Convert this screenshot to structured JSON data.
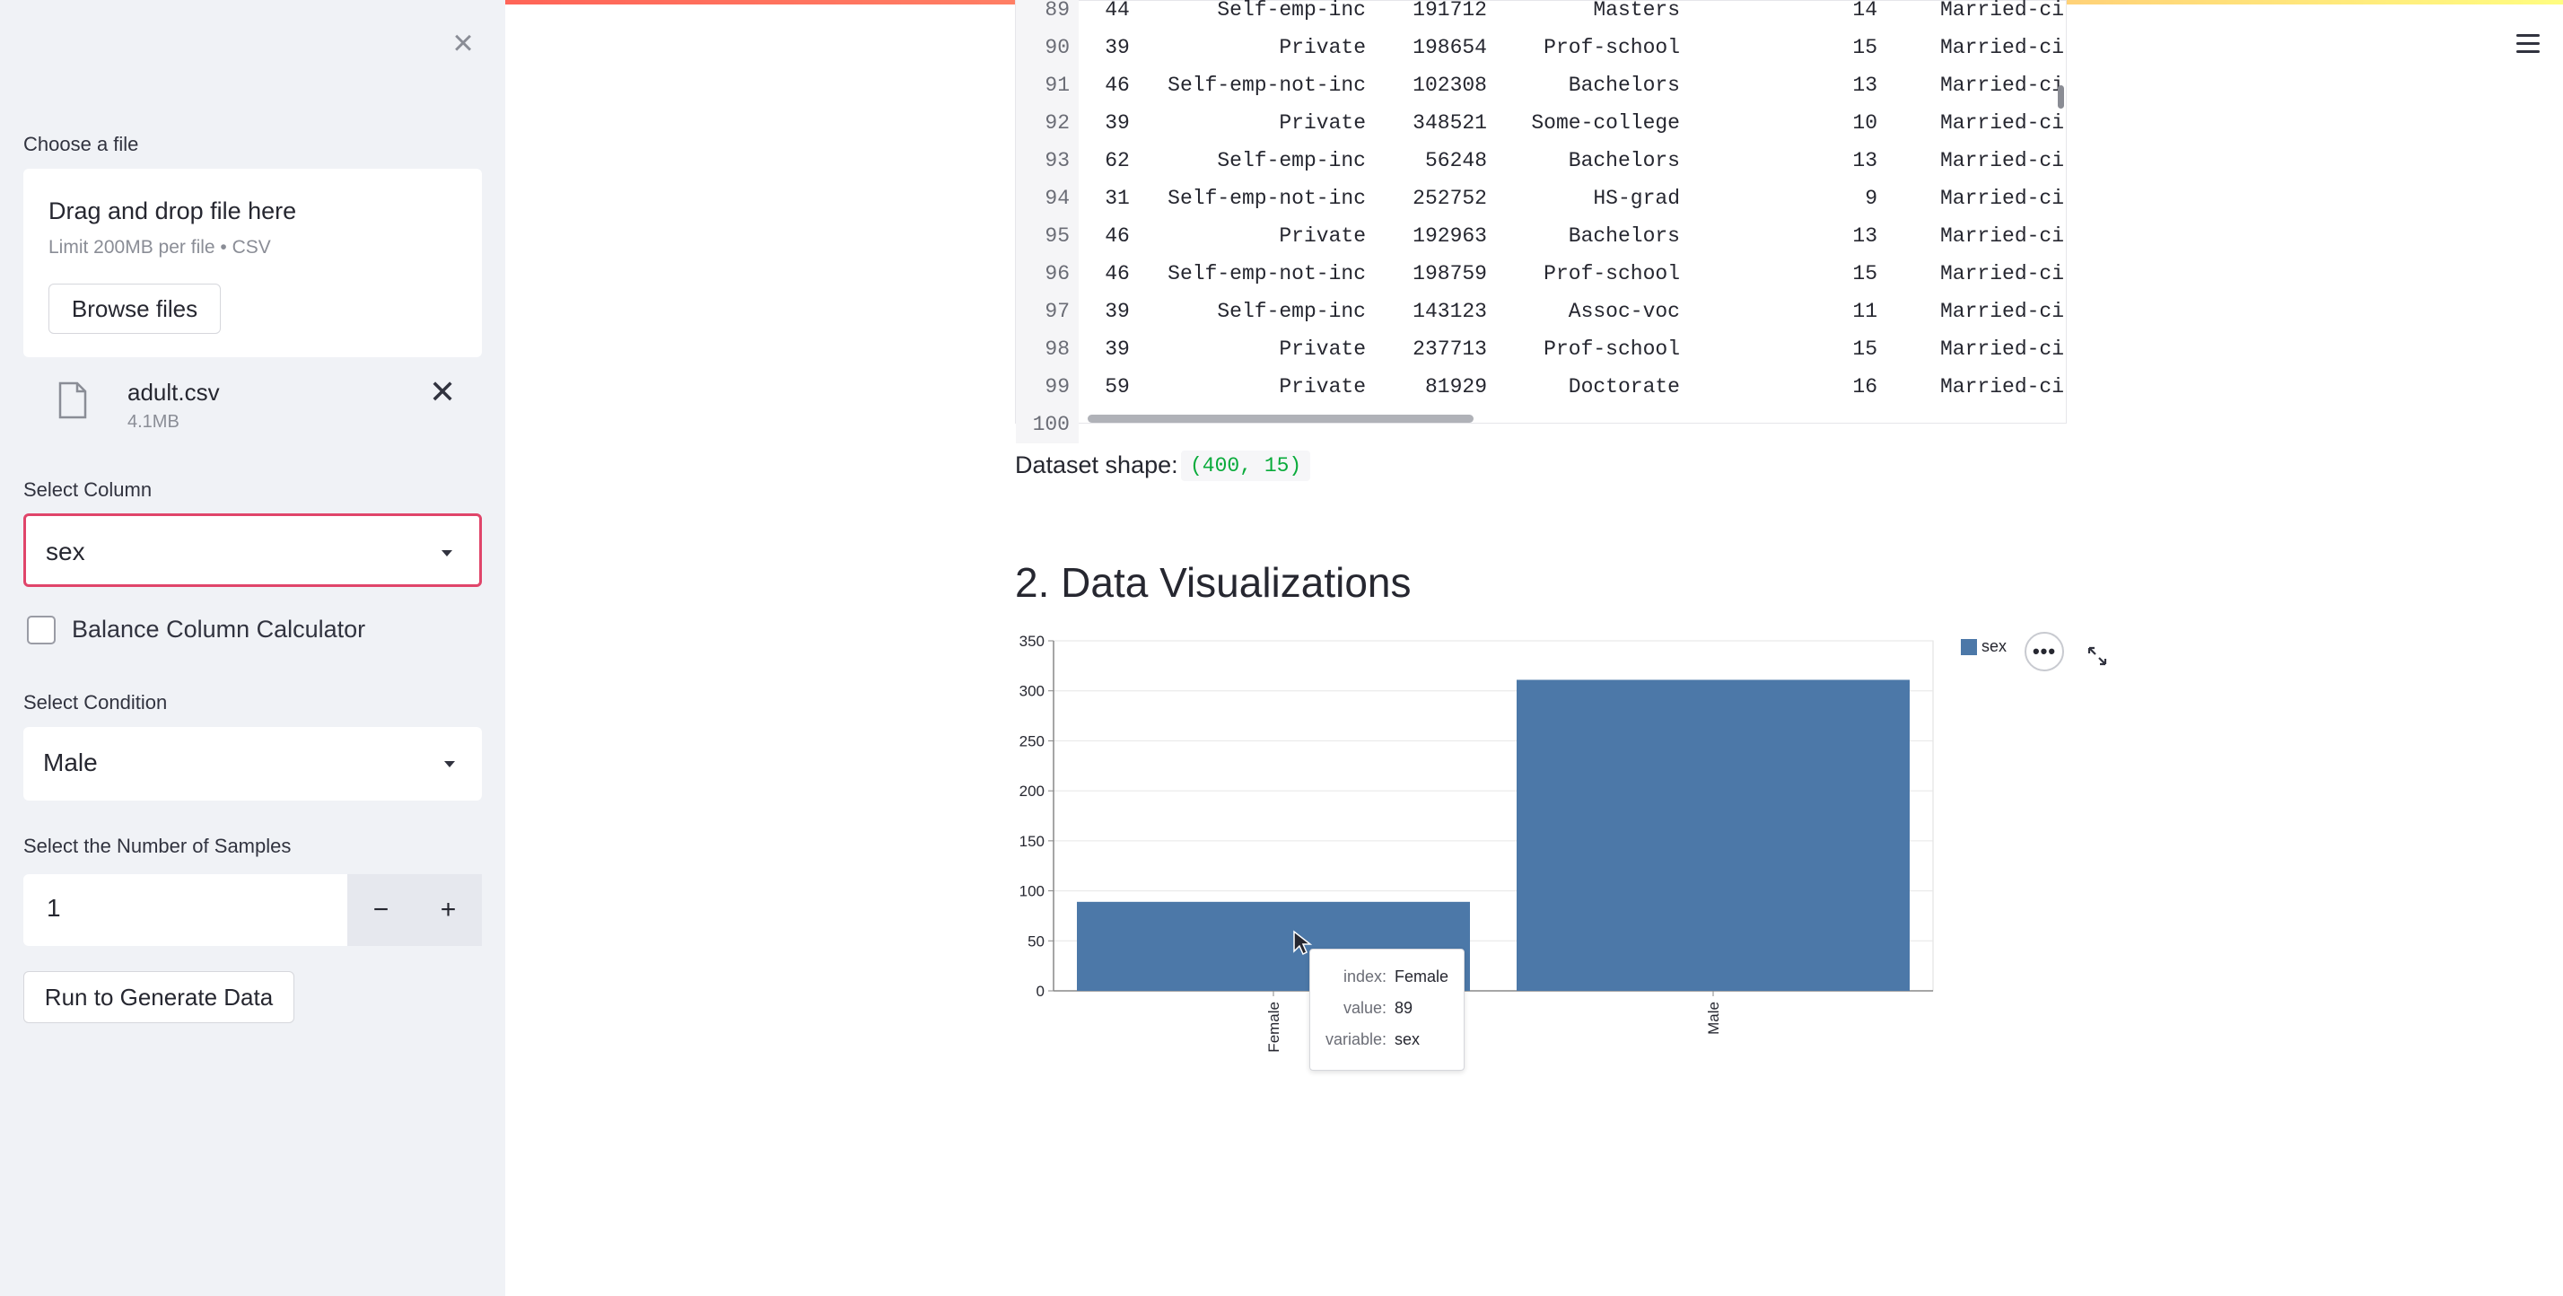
{
  "sidebar": {
    "choose_file_label": "Choose a file",
    "uploader_title": "Drag and drop file here",
    "uploader_limit": "Limit 200MB per file • CSV",
    "browse_label": "Browse files",
    "file_name": "adult.csv",
    "file_size": "4.1MB",
    "select_column_label": "Select Column",
    "select_column_value": "sex",
    "balance_label": "Balance Column Calculator",
    "balance_checked": false,
    "select_condition_label": "Select Condition",
    "select_condition_value": "Male",
    "samples_label": "Select the Number of Samples",
    "samples_value": "1",
    "minus_label": "−",
    "plus_label": "+",
    "run_label": "Run to Generate Data"
  },
  "table": {
    "rows": [
      {
        "idx": "89",
        "age": "44",
        "workclass": "Self-emp-inc",
        "fnlwgt": "191712",
        "education": "Masters",
        "edu_num": "14",
        "marital": "Married-ci"
      },
      {
        "idx": "90",
        "age": "39",
        "workclass": "Private",
        "fnlwgt": "198654",
        "education": "Prof-school",
        "edu_num": "15",
        "marital": "Married-ci"
      },
      {
        "idx": "91",
        "age": "46",
        "workclass": "Self-emp-not-inc",
        "fnlwgt": "102308",
        "education": "Bachelors",
        "edu_num": "13",
        "marital": "Married-ci"
      },
      {
        "idx": "92",
        "age": "39",
        "workclass": "Private",
        "fnlwgt": "348521",
        "education": "Some-college",
        "edu_num": "10",
        "marital": "Married-ci"
      },
      {
        "idx": "93",
        "age": "62",
        "workclass": "Self-emp-inc",
        "fnlwgt": "56248",
        "education": "Bachelors",
        "edu_num": "13",
        "marital": "Married-ci"
      },
      {
        "idx": "94",
        "age": "31",
        "workclass": "Self-emp-not-inc",
        "fnlwgt": "252752",
        "education": "HS-grad",
        "edu_num": "9",
        "marital": "Married-ci"
      },
      {
        "idx": "95",
        "age": "46",
        "workclass": "Private",
        "fnlwgt": "192963",
        "education": "Bachelors",
        "edu_num": "13",
        "marital": "Married-ci"
      },
      {
        "idx": "96",
        "age": "46",
        "workclass": "Self-emp-not-inc",
        "fnlwgt": "198759",
        "education": "Prof-school",
        "edu_num": "15",
        "marital": "Married-ci"
      },
      {
        "idx": "97",
        "age": "39",
        "workclass": "Self-emp-inc",
        "fnlwgt": "143123",
        "education": "Assoc-voc",
        "edu_num": "11",
        "marital": "Married-ci"
      },
      {
        "idx": "98",
        "age": "39",
        "workclass": "Private",
        "fnlwgt": "237713",
        "education": "Prof-school",
        "edu_num": "15",
        "marital": "Married-ci"
      },
      {
        "idx": "99",
        "age": "59",
        "workclass": "Private",
        "fnlwgt": "81929",
        "education": "Doctorate",
        "edu_num": "16",
        "marital": "Married-ci"
      },
      {
        "idx": "100",
        "age": "",
        "workclass": "",
        "fnlwgt": "",
        "education": "",
        "edu_num": "",
        "marital": ""
      }
    ]
  },
  "shape": {
    "label": "Dataset shape:",
    "value": "(400, 15)"
  },
  "section_title": "2. Data Visualizations",
  "chart_data": {
    "type": "bar",
    "categories": [
      "Female",
      "Male"
    ],
    "series": [
      {
        "name": "sex",
        "values": [
          89,
          311
        ]
      }
    ],
    "ylim": [
      0,
      350
    ],
    "yticks": [
      0,
      50,
      100,
      150,
      200,
      250,
      300,
      350
    ],
    "legend": "top-right",
    "grid": true,
    "color": "#4c78a8"
  },
  "tooltip": {
    "index_key": "index:",
    "index_val": "Female",
    "value_key": "value:",
    "value_val": "89",
    "variable_key": "variable:",
    "variable_val": "sex"
  },
  "colors": {
    "accent": "#ff4b4b",
    "active_border": "#e0456a",
    "bar": "#4c78a8"
  }
}
